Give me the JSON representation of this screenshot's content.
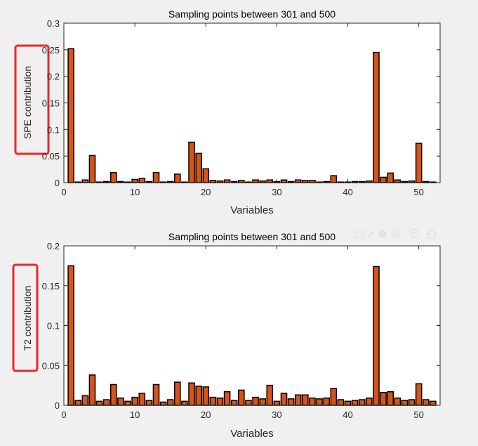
{
  "colors": {
    "figure_bg": "#f0f0f0",
    "axes_bg": "#ffffff",
    "bar_fill": "#d95319",
    "bar_edge": "#000000",
    "axis_color": "#262626",
    "highlight_box": "#e8262b",
    "toolbar_icon": "#d8d8d8"
  },
  "toolbar_icons": [
    "save-icon",
    "brush-icon",
    "pan-icon",
    "zoom-in-icon",
    "zoom-out-icon",
    "home-icon"
  ],
  "chart_data": [
    {
      "type": "bar",
      "title": "Sampling points between 301 and 500",
      "xlabel": "Variables",
      "ylabel": "SPE contribution",
      "xlim": [
        0,
        53
      ],
      "ylim": [
        0,
        0.3
      ],
      "xticks": [
        0,
        10,
        20,
        30,
        40,
        50
      ],
      "xtick_labels": [
        "0",
        "10",
        "20",
        "30",
        "40",
        "50"
      ],
      "yticks": [
        0,
        0.05,
        0.1,
        0.15,
        0.2,
        0.25,
        0.3
      ],
      "ytick_labels": [
        "0",
        "0.05",
        "0.1",
        "0.15",
        "0.2",
        "0.25",
        "0.3"
      ],
      "grid": false,
      "highlighted_label": true,
      "x": [
        1,
        2,
        3,
        4,
        5,
        6,
        7,
        8,
        9,
        10,
        11,
        12,
        13,
        14,
        15,
        16,
        17,
        18,
        19,
        20,
        21,
        22,
        23,
        24,
        25,
        26,
        27,
        28,
        29,
        30,
        31,
        32,
        33,
        34,
        35,
        36,
        37,
        38,
        39,
        40,
        41,
        42,
        43,
        44,
        45,
        46,
        47,
        48,
        49,
        50,
        51,
        52
      ],
      "values": [
        0.252,
        0.001,
        0.005,
        0.051,
        0.001,
        0.002,
        0.019,
        0.002,
        0.001,
        0.006,
        0.008,
        0.002,
        0.019,
        0.001,
        0.002,
        0.016,
        0.001,
        0.076,
        0.055,
        0.026,
        0.004,
        0.003,
        0.005,
        0.002,
        0.004,
        0.001,
        0.005,
        0.003,
        0.005,
        0.002,
        0.005,
        0.002,
        0.005,
        0.004,
        0.004,
        0.001,
        0.002,
        0.013,
        0.001,
        0.001,
        0.002,
        0.002,
        0.003,
        0.245,
        0.01,
        0.018,
        0.005,
        0.002,
        0.003,
        0.074,
        0.002,
        0.001
      ]
    },
    {
      "type": "bar",
      "title": "Sampling points between 301 and 500",
      "xlabel": "Variables",
      "ylabel": "T2 contribution",
      "xlim": [
        0,
        53
      ],
      "ylim": [
        0,
        0.2
      ],
      "xticks": [
        0,
        10,
        20,
        30,
        40,
        50
      ],
      "xtick_labels": [
        "0",
        "10",
        "20",
        "30",
        "40",
        "50"
      ],
      "yticks": [
        0,
        0.05,
        0.1,
        0.15,
        0.2
      ],
      "ytick_labels": [
        "0",
        "0.05",
        "0.1",
        "0.15",
        "0.2"
      ],
      "grid": false,
      "highlighted_label": true,
      "x": [
        1,
        2,
        3,
        4,
        5,
        6,
        7,
        8,
        9,
        10,
        11,
        12,
        13,
        14,
        15,
        16,
        17,
        18,
        19,
        20,
        21,
        22,
        23,
        24,
        25,
        26,
        27,
        28,
        29,
        30,
        31,
        32,
        33,
        34,
        35,
        36,
        37,
        38,
        39,
        40,
        41,
        42,
        43,
        44,
        45,
        46,
        47,
        48,
        49,
        50,
        51,
        52
      ],
      "values": [
        0.175,
        0.006,
        0.012,
        0.038,
        0.005,
        0.007,
        0.026,
        0.009,
        0.005,
        0.01,
        0.015,
        0.006,
        0.026,
        0.004,
        0.007,
        0.029,
        0.005,
        0.028,
        0.024,
        0.023,
        0.01,
        0.009,
        0.017,
        0.006,
        0.019,
        0.006,
        0.01,
        0.008,
        0.025,
        0.005,
        0.015,
        0.008,
        0.013,
        0.013,
        0.009,
        0.008,
        0.009,
        0.021,
        0.007,
        0.005,
        0.006,
        0.007,
        0.009,
        0.174,
        0.016,
        0.017,
        0.009,
        0.006,
        0.007,
        0.027,
        0.007,
        0.005
      ]
    }
  ]
}
